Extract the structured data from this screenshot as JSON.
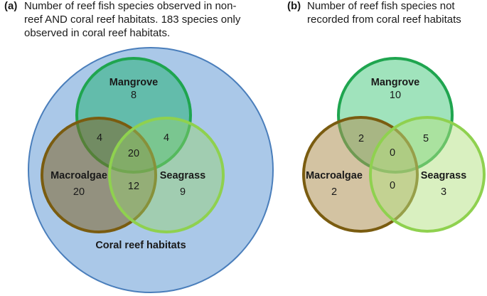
{
  "panel_a": {
    "tag": "(a)",
    "caption_lines": [
      "Number of reef fish species observed in non-",
      "reef AND coral reef habitats. 183 species only",
      "observed in coral reef habitats."
    ],
    "outer_label": "Coral reef habitats",
    "sets": {
      "mangrove": {
        "label": "Mangrove",
        "value": "8"
      },
      "macroalgae": {
        "label": "Macroalgae",
        "value": "20"
      },
      "seagrass": {
        "label": "Seagrass",
        "value": "9"
      }
    },
    "overlaps": {
      "mangrove_macroalgae": "4",
      "mangrove_seagrass": "4",
      "all_three": "20",
      "macroalgae_seagrass": "12"
    }
  },
  "panel_b": {
    "tag": "(b)",
    "caption_lines": [
      "Number of reef fish species not",
      "recorded from coral reef habitats"
    ],
    "sets": {
      "mangrove": {
        "label": "Mangrove",
        "value": "10"
      },
      "macroalgae": {
        "label": "Macroalgae",
        "value": "2"
      },
      "seagrass": {
        "label": "Seagrass",
        "value": "3"
      }
    },
    "overlaps": {
      "mangrove_macroalgae": "2",
      "mangrove_seagrass": "5",
      "all_three": "0",
      "macroalgae_seagrass": "0"
    }
  },
  "colors": {
    "coral_fill": "#aac8e8",
    "coral_stroke": "#4a7ebb",
    "mangrove_stroke": "#1fa54f",
    "macroalgae_stroke": "#7a5c10",
    "seagrass_stroke": "#8fd14f"
  }
}
